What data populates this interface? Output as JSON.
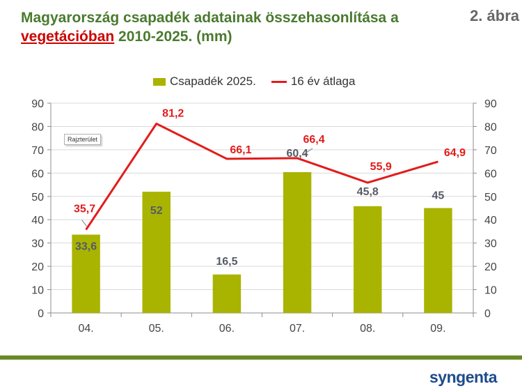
{
  "header": {
    "title_line1": "Magyarország csapadék adatainak összehasonlítása a",
    "title_highlight": "vegetációban",
    "title_rest": " 2010-2025. (mm)",
    "figure_label": "2. ábra"
  },
  "tooltip": "Rajzterület",
  "logo": "syngenta",
  "colors": {
    "bar": "#a9b400",
    "line": "#e31b1b",
    "title": "#4a7a2e",
    "footer": "#6a8a28",
    "logo": "#1e4a8c"
  },
  "chart_data": {
    "type": "bar",
    "categories": [
      "04.",
      "05.",
      "06.",
      "07.",
      "08.",
      "09."
    ],
    "series": [
      {
        "name": "Csapadék 2025.",
        "type": "bar",
        "values": [
          33.6,
          52,
          16.5,
          60.4,
          45.8,
          45
        ],
        "labels": [
          "33,6",
          "52",
          "16,5",
          "60,4",
          "45,8",
          "45"
        ]
      },
      {
        "name": "16 év átlaga",
        "type": "line",
        "values": [
          35.7,
          81.2,
          66.1,
          66.4,
          55.9,
          64.9
        ],
        "labels": [
          "35,7",
          "81,2",
          "66,1",
          "66,4",
          "55,9",
          "64,9"
        ]
      }
    ],
    "ylim": [
      0,
      90
    ],
    "yticks": [
      0,
      10,
      20,
      30,
      40,
      50,
      60,
      70,
      80,
      90
    ],
    "secondary_yticks": [
      0,
      10,
      20,
      30,
      40,
      50,
      60,
      70,
      80,
      90
    ],
    "grid": true,
    "legend_position": "top"
  }
}
